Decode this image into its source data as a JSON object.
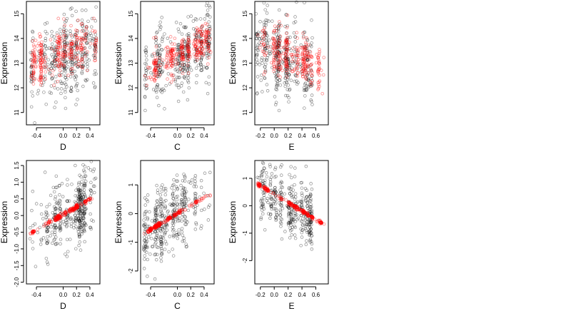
{
  "chart_data": [
    {
      "type": "scatter",
      "row": 0,
      "col": 0,
      "xlabel": "D",
      "ylabel": "Expression",
      "xlim": [
        -0.55,
        0.55
      ],
      "ylim": [
        10.5,
        15.5
      ],
      "xticks": [
        -0.4,
        0.0,
        0.2,
        0.4
      ],
      "xtick_labels": [
        "-0.4",
        "0.0",
        "0.2",
        "0.4"
      ],
      "yticks": [
        11,
        12,
        13,
        14,
        15
      ],
      "ytick_labels": [
        "11",
        "12",
        "13",
        "14",
        "15"
      ],
      "series": [
        {
          "color": "black",
          "x_range": [
            -0.5,
            0.5
          ],
          "y_center": 13.2,
          "y_spread": 0.8,
          "slope": 1.0,
          "count": 380
        },
        {
          "color": "red",
          "x_range": [
            -0.5,
            0.5
          ],
          "y_center": 13.4,
          "y_spread": 0.5,
          "slope": 1.0,
          "count": 300
        }
      ]
    },
    {
      "type": "scatter",
      "row": 0,
      "col": 1,
      "xlabel": "C",
      "ylabel": "Expression",
      "xlim": [
        -0.55,
        0.55
      ],
      "ylim": [
        10.5,
        15.5
      ],
      "xticks": [
        -0.4,
        0.0,
        0.2,
        0.4
      ],
      "xtick_labels": [
        "-0.4",
        "0.0",
        "0.2",
        "0.4"
      ],
      "yticks": [
        11,
        12,
        13,
        14,
        15
      ],
      "ytick_labels": [
        "11",
        "12",
        "13",
        "14",
        "15"
      ],
      "series": [
        {
          "color": "black",
          "x_range": [
            -0.5,
            0.5
          ],
          "y_center": 13.2,
          "y_spread": 0.7,
          "slope": 1.4,
          "count": 380
        },
        {
          "color": "red",
          "x_range": [
            -0.5,
            0.5
          ],
          "y_center": 13.3,
          "y_spread": 0.35,
          "slope": 1.4,
          "count": 300
        }
      ]
    },
    {
      "type": "scatter",
      "row": 0,
      "col": 2,
      "xlabel": "E",
      "ylabel": "Expression",
      "xlim": [
        -0.28,
        0.78
      ],
      "ylim": [
        10.5,
        15.5
      ],
      "xticks": [
        -0.2,
        0.0,
        0.2,
        0.4,
        0.6
      ],
      "xtick_labels": [
        "-0.2",
        "0.0",
        "0.2",
        "0.4",
        "0.6"
      ],
      "yticks": [
        11,
        12,
        13,
        14,
        15
      ],
      "ytick_labels": [
        "11",
        "12",
        "13",
        "14",
        "15"
      ],
      "series": [
        {
          "color": "black",
          "x_range": [
            -0.25,
            0.55
          ],
          "y_center": 13.2,
          "y_spread": 0.8,
          "slope": -1.2,
          "count": 380
        },
        {
          "color": "red",
          "x_range": [
            -0.25,
            0.72
          ],
          "y_center": 13.3,
          "y_spread": 0.5,
          "slope": -1.2,
          "count": 300
        }
      ]
    },
    {
      "type": "scatter",
      "row": 1,
      "col": 0,
      "xlabel": "D",
      "ylabel": "Expression",
      "xlim": [
        -0.55,
        0.55
      ],
      "ylim": [
        -2.05,
        1.65
      ],
      "xticks": [
        -0.4,
        0.0,
        0.2,
        0.4
      ],
      "xtick_labels": [
        "-0.4",
        "0.0",
        "0.2",
        "0.4"
      ],
      "yticks": [
        -2.0,
        -1.5,
        -1.0,
        -0.5,
        0.0,
        0.5,
        1.0,
        1.5
      ],
      "ytick_labels": [
        "-2.0",
        "-1.5",
        "-1.0",
        "-0.5",
        "0.0",
        "0.5",
        "1.0",
        "1.5"
      ],
      "series": [
        {
          "color": "black",
          "x_range": [
            -0.5,
            0.5
          ],
          "y_center": 0.0,
          "y_spread": 0.55,
          "slope": 1.15,
          "count": 380
        },
        {
          "color": "red",
          "x_range": [
            -0.5,
            0.45
          ],
          "y_center": 0.0,
          "y_spread": 0.03,
          "slope": 1.15,
          "count": 250
        }
      ]
    },
    {
      "type": "scatter",
      "row": 1,
      "col": 1,
      "xlabel": "C",
      "ylabel": "Expression",
      "xlim": [
        -0.55,
        0.55
      ],
      "ylim": [
        -2.45,
        1.85
      ],
      "xticks": [
        -0.4,
        0.0,
        0.2,
        0.4
      ],
      "xtick_labels": [
        "-0.4",
        "0.0",
        "0.2",
        "0.4"
      ],
      "yticks": [
        -2,
        -1,
        0,
        1
      ],
      "ytick_labels": [
        "-2",
        "-1",
        "0",
        "1"
      ],
      "series": [
        {
          "color": "black",
          "x_range": [
            -0.5,
            0.5
          ],
          "y_center": 0.0,
          "y_spread": 0.6,
          "slope": 1.4,
          "count": 380
        },
        {
          "color": "red",
          "x_range": [
            -0.5,
            0.5
          ],
          "y_center": 0.0,
          "y_spread": 0.03,
          "slope": 1.4,
          "count": 250
        }
      ]
    },
    {
      "type": "scatter",
      "row": 1,
      "col": 2,
      "xlabel": "E",
      "ylabel": "Expression",
      "xlim": [
        -0.28,
        0.78
      ],
      "ylim": [
        -2.85,
        1.65
      ],
      "xticks": [
        -0.2,
        0.0,
        0.2,
        0.4,
        0.6
      ],
      "xtick_labels": [
        "-0.2",
        "0.0",
        "0.2",
        "0.4",
        "0.6"
      ],
      "yticks": [
        -2,
        -1,
        0,
        1
      ],
      "ytick_labels": [
        "-2",
        "-1",
        "0",
        "1"
      ],
      "series": [
        {
          "color": "black",
          "x_range": [
            -0.25,
            0.55
          ],
          "y_center": 0.1,
          "y_spread": 0.55,
          "slope": -1.5,
          "count": 380
        },
        {
          "color": "red",
          "x_range": [
            -0.25,
            0.72
          ],
          "y_center": 0.06,
          "y_spread": 0.03,
          "slope": -1.55,
          "count": 250
        }
      ]
    }
  ]
}
